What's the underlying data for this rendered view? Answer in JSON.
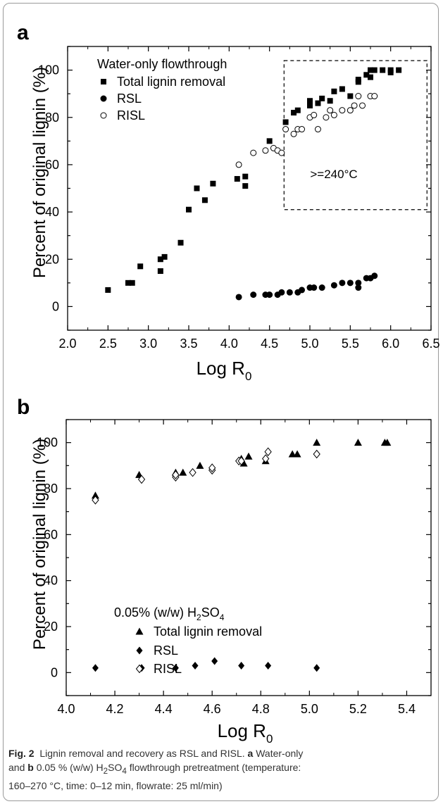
{
  "chart_data": [
    {
      "panel": "a",
      "type": "scatter",
      "xlabel": "Log R0",
      "ylabel": "Percent of original lignin (%)",
      "xlim": [
        2.0,
        6.5
      ],
      "ylim": [
        -10,
        110
      ],
      "xticks": [
        "2.0",
        "2.5",
        "3.0",
        "3.5",
        "4.0",
        "4.5",
        "5.0",
        "5.5",
        "6.0",
        "6.5"
      ],
      "yticks": [
        "0",
        "20",
        "40",
        "60",
        "80",
        "100"
      ],
      "legend_title": "Water-only flowthrough",
      "legend_position": "top-left",
      "annotation": ">=240°C",
      "annotation_box": {
        "x": [
          4.68,
          6.45
        ],
        "y": [
          41,
          104
        ]
      },
      "series": [
        {
          "name": "Total lignin removal",
          "marker": "square",
          "x": [
            2.5,
            2.75,
            2.8,
            2.9,
            3.15,
            3.15,
            3.2,
            3.4,
            3.5,
            3.6,
            3.7,
            3.8,
            4.1,
            4.2,
            4.2,
            4.5,
            4.7,
            4.8,
            4.85,
            5.0,
            5.0,
            5.1,
            5.15,
            5.25,
            5.3,
            5.4,
            5.5,
            5.6,
            5.6,
            5.7,
            5.75,
            5.75,
            5.8,
            5.9,
            6.0,
            6.0,
            6.1
          ],
          "y": [
            7,
            10,
            10,
            17,
            15,
            20,
            21,
            27,
            41,
            50,
            45,
            52,
            54,
            55,
            51,
            70,
            78,
            82,
            83,
            85,
            87,
            86,
            88,
            87,
            91,
            92,
            89,
            96,
            95,
            98,
            100,
            97,
            100,
            100,
            100,
            99,
            100
          ]
        },
        {
          "name": "RSL",
          "marker": "filled-circle",
          "x": [
            4.12,
            4.3,
            4.45,
            4.5,
            4.6,
            4.65,
            4.75,
            4.85,
            4.9,
            5.0,
            5.05,
            5.15,
            5.3,
            5.4,
            5.5,
            5.6,
            5.6,
            5.7,
            5.75,
            5.8
          ],
          "y": [
            4,
            5,
            5,
            5,
            5,
            6,
            6,
            6,
            7,
            8,
            8,
            8,
            9,
            10,
            10,
            8,
            10,
            12,
            12,
            13
          ]
        },
        {
          "name": "RISL",
          "marker": "open-circle",
          "x": [
            4.12,
            4.3,
            4.45,
            4.55,
            4.6,
            4.65,
            4.7,
            4.8,
            4.85,
            4.9,
            5.0,
            5.05,
            5.1,
            5.2,
            5.25,
            5.3,
            5.4,
            5.5,
            5.55,
            5.6,
            5.65,
            5.75,
            5.8
          ],
          "y": [
            60,
            65,
            66,
            67,
            66,
            65,
            75,
            73,
            75,
            75,
            80,
            81,
            75,
            80,
            83,
            81,
            83,
            83,
            85,
            89,
            85,
            89,
            89
          ]
        }
      ]
    },
    {
      "panel": "b",
      "type": "scatter",
      "xlabel": "Log R0",
      "ylabel": "Percent of original lignin (%)",
      "xlim": [
        4.0,
        5.5
      ],
      "ylim": [
        -10,
        110
      ],
      "xticks": [
        "4.0",
        "4.2",
        "4.4",
        "4.6",
        "4.8",
        "5.0",
        "5.2",
        "5.4"
      ],
      "yticks": [
        "0",
        "20",
        "40",
        "60",
        "80",
        "100"
      ],
      "legend_title": "0.05% (w/w) H2SO4",
      "legend_position": "center-left",
      "series": [
        {
          "name": "Total lignin removal",
          "marker": "filled-triangle",
          "x": [
            4.12,
            4.3,
            4.45,
            4.48,
            4.55,
            4.72,
            4.73,
            4.75,
            4.82,
            4.93,
            4.95,
            5.03,
            5.2,
            5.31,
            5.32
          ],
          "y": [
            77,
            86,
            87,
            87,
            90,
            93,
            91,
            94,
            92,
            95,
            95,
            100,
            100,
            100,
            100
          ]
        },
        {
          "name": "RSL",
          "marker": "filled-diamond",
          "x": [
            4.12,
            4.31,
            4.45,
            4.53,
            4.61,
            4.72,
            4.83,
            5.03
          ],
          "y": [
            2,
            2,
            2,
            3,
            5,
            3,
            3,
            2
          ]
        },
        {
          "name": "RISL",
          "marker": "open-diamond",
          "x": [
            4.12,
            4.31,
            4.45,
            4.45,
            4.52,
            4.6,
            4.6,
            4.71,
            4.72,
            4.82,
            4.83,
            5.03
          ],
          "y": [
            75,
            84,
            85,
            86,
            87,
            88,
            89,
            92,
            92,
            93,
            96,
            95
          ]
        }
      ]
    }
  ],
  "labels": {
    "panel_a": "a",
    "panel_b": "b",
    "xlabel_main": "Log R",
    "xlabel_sub": "0",
    "legend_b_prefix": "0.05% (w/w) H",
    "legend_b_sub1": "2",
    "legend_b_mid": "SO",
    "legend_b_sub2": "4"
  },
  "caption": {
    "fig": "Fig. 2",
    "line1": "Lignin removal and recovery as RSL and RISL.",
    "bold_a": "a",
    "line2a": "Water-only",
    "line2b": "and",
    "bold_b": "b",
    "line2c": "0.05 % (w/w) H",
    "sub2": "2",
    "line2d": "SO",
    "sub4": "4",
    "line2e": "flowthrough pretreatment (temperature:",
    "line3": "160–270 °C, time: 0–12 min, flowrate: 25 ml/min)"
  }
}
